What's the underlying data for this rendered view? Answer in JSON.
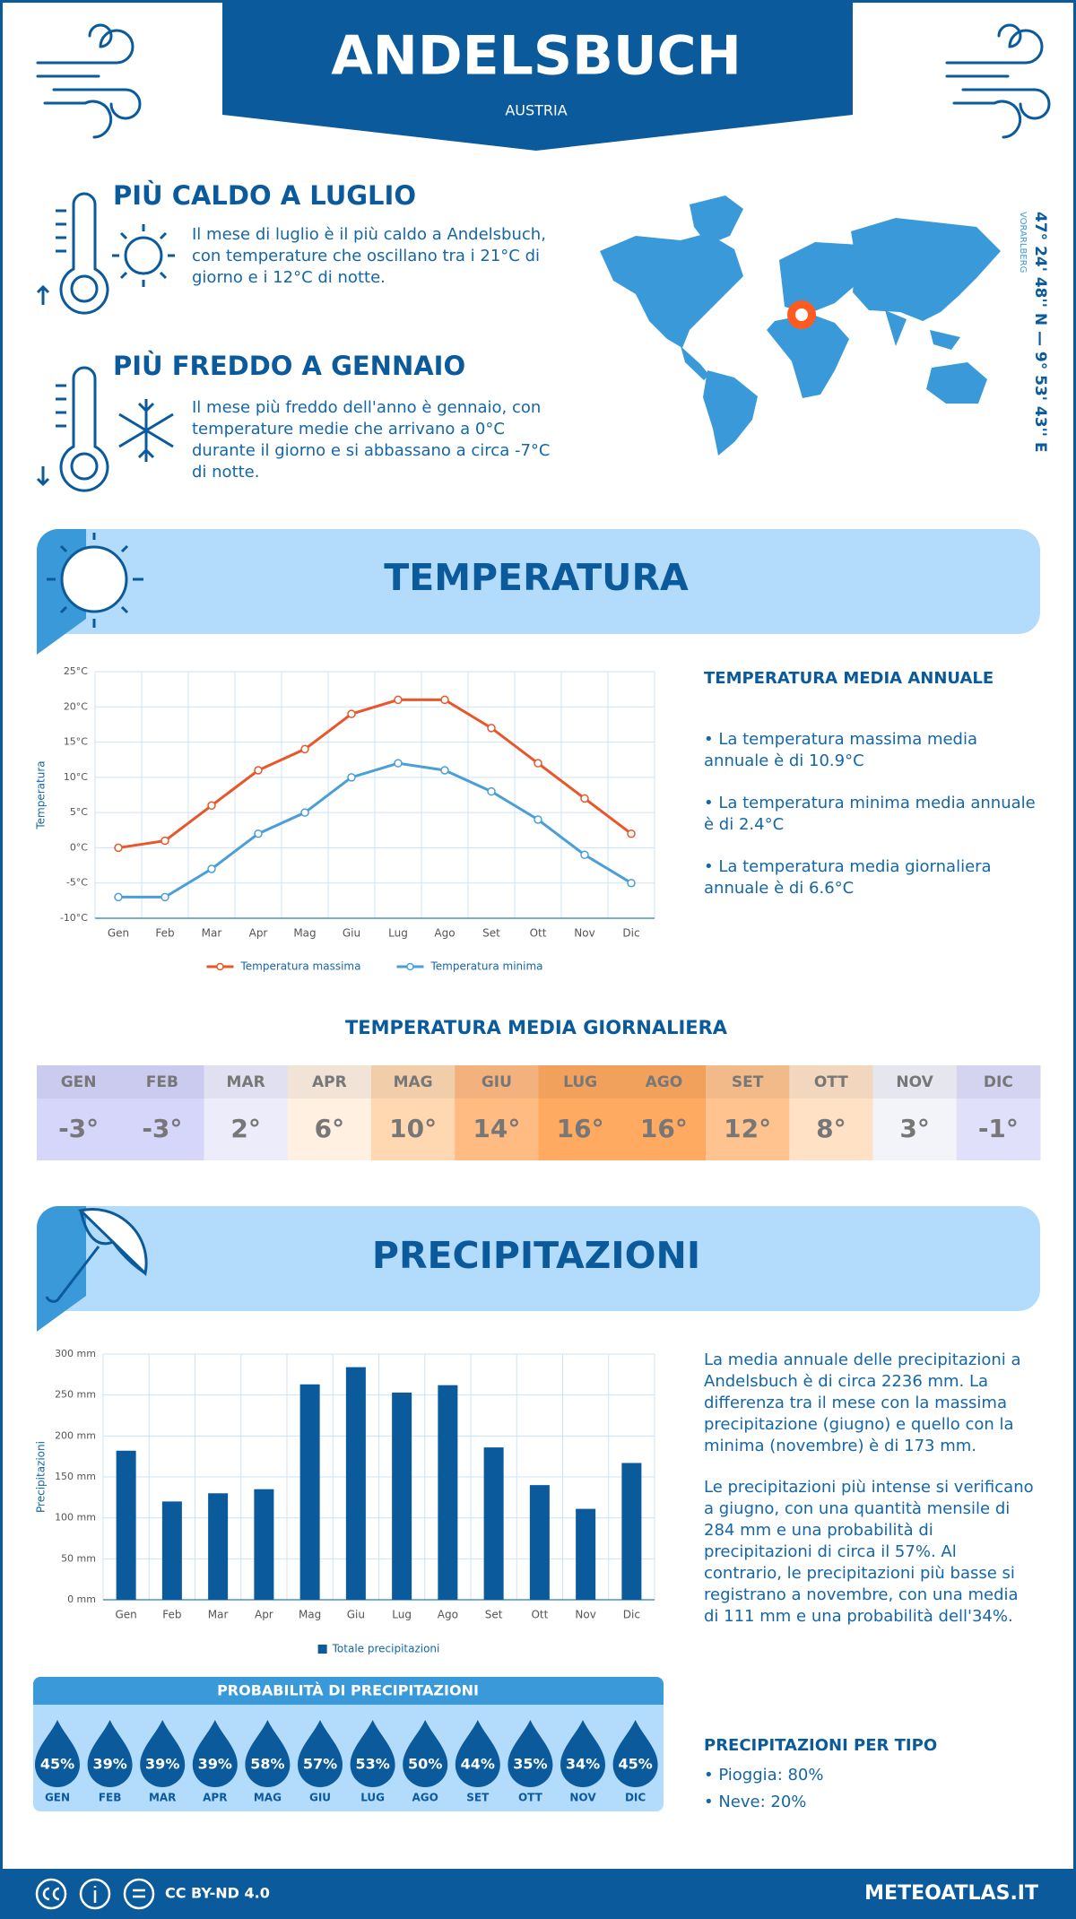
{
  "header": {
    "title": "ANDELSBUCH",
    "subtitle": "AUSTRIA"
  },
  "coords": {
    "text": "47° 24' 48'' N — 9° 53' 43'' E",
    "region": "VORARLBERG"
  },
  "warmest": {
    "title": "PIÙ CALDO A LUGLIO",
    "lines": [
      "Il mese di luglio è il più caldo a Andelsbuch,",
      "con temperature che oscillano tra i 21°C di",
      "giorno e i 12°C di notte."
    ]
  },
  "coldest": {
    "title": "PIÙ FREDDO A GENNAIO",
    "lines": [
      "Il mese più freddo dell'anno è gennaio, con",
      "temperature medie che arrivano a 0°C",
      "durante il giorno e si abbassano a circa -7°C",
      "di notte."
    ]
  },
  "temperature_section": {
    "title": "TEMPERATURA"
  },
  "temp_summary": {
    "title": "TEMPERATURA MEDIA ANNUALE",
    "items": [
      [
        "• La temperatura massima media",
        "annuale è di 10.9°C"
      ],
      [
        "• La temperatura minima media annuale",
        "è di 2.4°C"
      ],
      [
        "• La temperatura media giornaliera",
        "annuale è di 6.6°C"
      ]
    ]
  },
  "daily_temp": {
    "title": "TEMPERATURA MEDIA GIORNALIERA",
    "months": [
      "GEN",
      "FEB",
      "MAR",
      "APR",
      "MAG",
      "GIU",
      "LUG",
      "AGO",
      "SET",
      "OTT",
      "NOV",
      "DIC"
    ],
    "values": [
      "-3°",
      "-3°",
      "2°",
      "6°",
      "10°",
      "14°",
      "16°",
      "16°",
      "12°",
      "8°",
      "3°",
      "-1°"
    ],
    "colors": [
      "#d6d6fa",
      "#d6d6fa",
      "#ececfb",
      "#fff0e1",
      "#ffd8b2",
      "#ffbb82",
      "#ffaa60",
      "#ffaa60",
      "#ffc38f",
      "#ffe2c6",
      "#f3f3fa",
      "#e0e0fb"
    ]
  },
  "precip_section": {
    "title": "PRECIPITAZIONI"
  },
  "precip_text": [
    [
      "La media annuale delle precipitazioni a",
      "Andelsbuch è di circa 2236 mm. La",
      "differenza tra il mese con la massima",
      "precipitazione (giugno) e quello con la",
      "minima (novembre) è di 173 mm."
    ],
    [
      "Le precipitazioni più intense si verificano",
      "a giugno, con una quantità mensile di",
      "284 mm e una probabilità di",
      "precipitazioni di circa il 57%. Al",
      "contrario, le precipitazioni più basse si",
      "registrano a novembre, con una media",
      "di 111 mm e una probabilità dell'34%."
    ]
  ],
  "probability": {
    "title": "PROBABILITÀ DI PRECIPITAZIONI",
    "months": [
      "GEN",
      "FEB",
      "MAR",
      "APR",
      "MAG",
      "GIU",
      "LUG",
      "AGO",
      "SET",
      "OTT",
      "NOV",
      "DIC"
    ],
    "values": [
      "45%",
      "39%",
      "39%",
      "39%",
      "58%",
      "57%",
      "53%",
      "50%",
      "44%",
      "35%",
      "34%",
      "45%"
    ]
  },
  "precip_type": {
    "title": "PRECIPITAZIONI PER TIPO",
    "items": [
      "• Pioggia: 80%",
      "• Neve: 20%"
    ]
  },
  "footer": {
    "license": "CC BY-ND 4.0",
    "site": "METEOATLAS.IT"
  },
  "chart_data": [
    {
      "type": "line",
      "ylabel": "Temperatura",
      "categories": [
        "Gen",
        "Feb",
        "Mar",
        "Apr",
        "Mag",
        "Giu",
        "Lug",
        "Ago",
        "Set",
        "Ott",
        "Nov",
        "Dic"
      ],
      "series": [
        {
          "name": "Temperatura massima",
          "color": "#e8562a",
          "values": [
            0,
            1,
            6,
            11,
            14,
            19,
            21,
            21,
            17,
            12,
            7,
            2
          ]
        },
        {
          "name": "Temperatura minima",
          "color": "#4a9fd8",
          "values": [
            -7,
            -7,
            -3,
            2,
            5,
            10,
            12,
            11,
            8,
            4,
            -1,
            -5
          ]
        }
      ],
      "ylim": [
        -10,
        25
      ],
      "yticks": [
        {
          "value": -10,
          "label": "-10°C"
        },
        {
          "value": -5,
          "label": "-5°C"
        },
        {
          "value": 0,
          "label": "0°C"
        },
        {
          "value": 5,
          "label": "5°C"
        },
        {
          "value": 10,
          "label": "10°C"
        },
        {
          "value": 15,
          "label": "15°C"
        },
        {
          "value": 20,
          "label": "20°C"
        },
        {
          "value": 25,
          "label": "25°C"
        }
      ],
      "grid": true,
      "legend": "bottom"
    },
    {
      "type": "bar",
      "ylabel": "Precipitazioni",
      "categories": [
        "Gen",
        "Feb",
        "Mar",
        "Apr",
        "Mag",
        "Giu",
        "Lug",
        "Ago",
        "Set",
        "Ott",
        "Nov",
        "Dic"
      ],
      "series": [
        {
          "name": "Totale precipitazioni",
          "color": "#0a5a9c",
          "values": [
            182,
            120,
            130,
            135,
            263,
            284,
            253,
            262,
            186,
            140,
            111,
            167
          ]
        }
      ],
      "ylim": [
        0,
        300
      ],
      "yticks": [
        {
          "value": 0,
          "label": "0 mm"
        },
        {
          "value": 50,
          "label": "50 mm"
        },
        {
          "value": 100,
          "label": "100 mm"
        },
        {
          "value": 150,
          "label": "150 mm"
        },
        {
          "value": 200,
          "label": "200 mm"
        },
        {
          "value": 250,
          "label": "250 mm"
        },
        {
          "value": 300,
          "label": "300 mm"
        }
      ],
      "grid": true,
      "legend": "bottom"
    }
  ]
}
